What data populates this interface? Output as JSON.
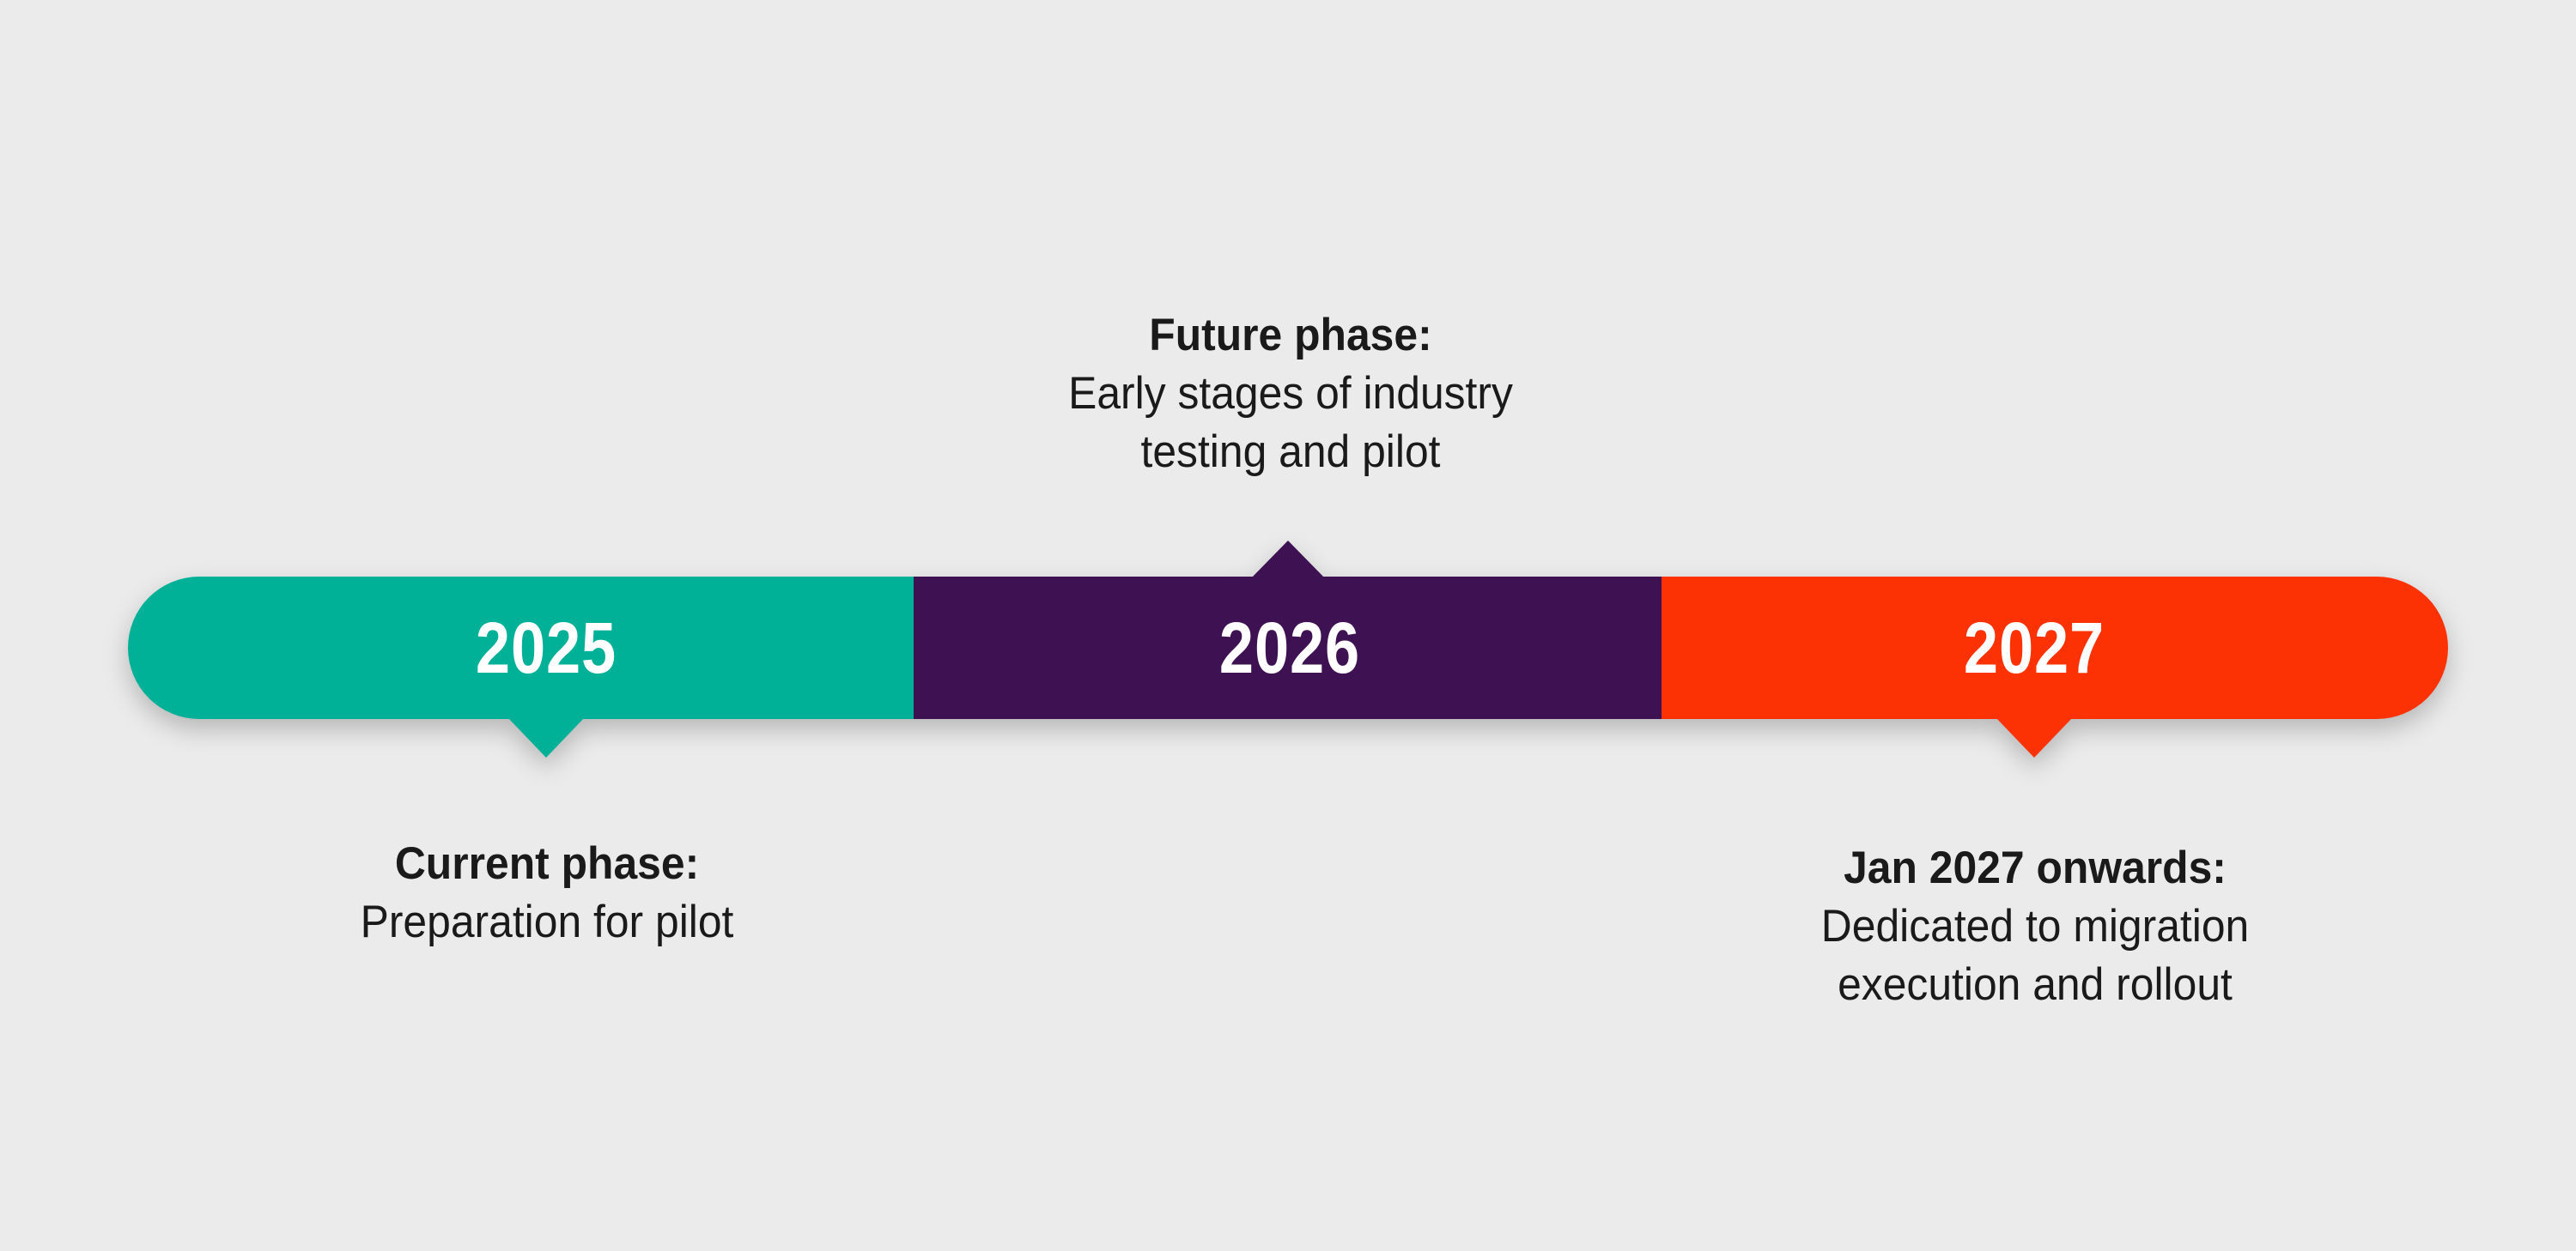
{
  "canvas": {
    "background_color": "#ebebeb",
    "text_color": "#1a1a1a"
  },
  "timeline": {
    "segments": [
      {
        "year": "2025",
        "color": "#00b198",
        "pointer": "down"
      },
      {
        "year": "2026",
        "color": "#3e1152",
        "pointer": "up"
      },
      {
        "year": "2027",
        "color": "#fc3205",
        "pointer": "down"
      }
    ],
    "year_text_color": "#ffffff"
  },
  "callouts": {
    "future": {
      "title": "Future phase:",
      "lines": [
        "Early stages of industry",
        "testing and pilot"
      ]
    },
    "current": {
      "title": "Current phase:",
      "lines": [
        "Preparation for pilot"
      ]
    },
    "jan2027": {
      "title": "Jan 2027 onwards:",
      "lines": [
        "Dedicated to migration",
        "execution and rollout"
      ]
    }
  }
}
